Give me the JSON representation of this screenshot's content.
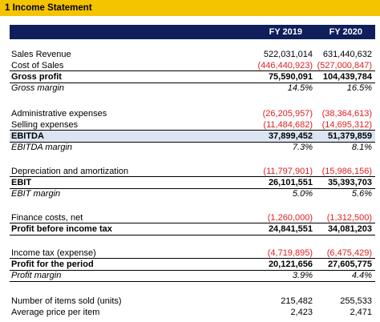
{
  "title": "1 Income Statement",
  "columns": [
    "FY 2019",
    "FY 2020"
  ],
  "rows": [
    {
      "label": "Sales Revenue",
      "v1": "522,031,014",
      "v2": "631,440,632"
    },
    {
      "label": "Cost of Sales",
      "v1": "(446,440,923)",
      "v2": "(527,000,847)"
    },
    {
      "label": "Gross profit",
      "v1": "75,590,091",
      "v2": "104,439,784"
    },
    {
      "label": "Gross margin",
      "v1": "14.5%",
      "v2": "16.5%"
    },
    {
      "label": "Administrative expenses",
      "v1": "(26,205,957)",
      "v2": "(38,364,613)"
    },
    {
      "label": "Selling expenses",
      "v1": "(11,484,682)",
      "v2": "(14,695,312)"
    },
    {
      "label": "EBITDA",
      "v1": "37,899,452",
      "v2": "51,379,859"
    },
    {
      "label": "EBITDA margin",
      "v1": "7.3%",
      "v2": "8.1%"
    },
    {
      "label": "Depreciation and amortization",
      "v1": "(11,797,901)",
      "v2": "(15,986,156)"
    },
    {
      "label": "EBIT",
      "v1": "26,101,551",
      "v2": "35,393,703"
    },
    {
      "label": "EBIT margin",
      "v1": "5.0%",
      "v2": "5.6%"
    },
    {
      "label": "Finance costs, net",
      "v1": "(1,260,000)",
      "v2": "(1,312,500)"
    },
    {
      "label": "Profit before income tax",
      "v1": "24,841,551",
      "v2": "34,081,203"
    },
    {
      "label": "Income tax (expense)",
      "v1": "(4,719,895)",
      "v2": "(6,475,429)"
    },
    {
      "label": "Profit for the period",
      "v1": "20,121,656",
      "v2": "27,605,775"
    },
    {
      "label": "Profit margin",
      "v1": "3.9%",
      "v2": "4.4%"
    },
    {
      "label": "Number of items sold (units)",
      "v1": "215,482",
      "v2": "255,533"
    },
    {
      "label": "Average price per item",
      "v1": "2,423",
      "v2": "2,471"
    }
  ]
}
